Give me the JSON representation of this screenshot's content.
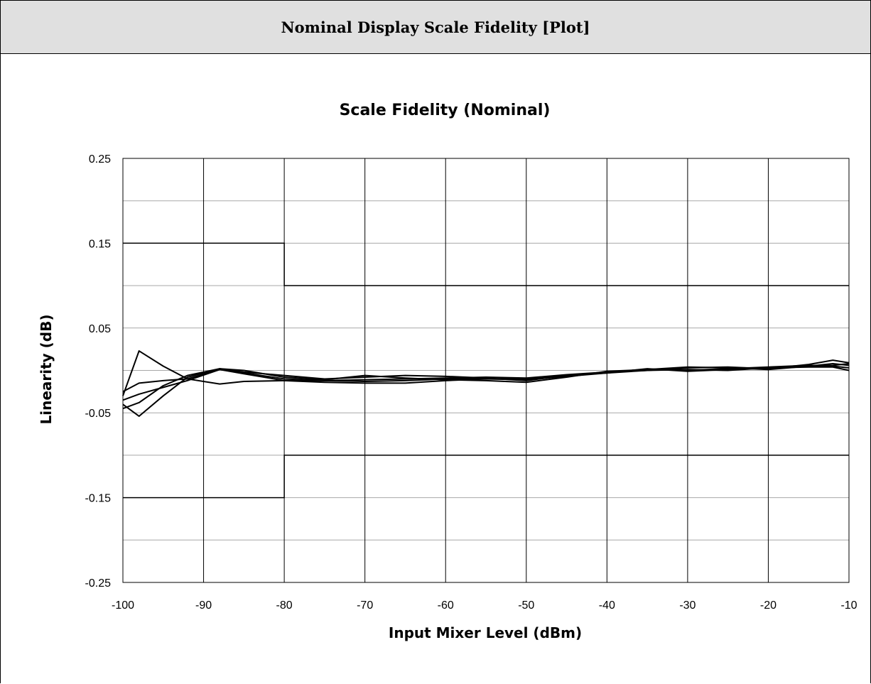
{
  "header": {
    "title": "Nominal Display Scale Fidelity [Plot]"
  },
  "chart_data": {
    "type": "line",
    "title": "Scale Fidelity (Nominal)",
    "xlabel": "Input Mixer Level (dBm)",
    "ylabel": "Linearity (dB)",
    "xlim": [
      -100,
      -10
    ],
    "ylim": [
      -0.25,
      0.25
    ],
    "x_ticks": [
      -100,
      -90,
      -80,
      -70,
      -60,
      -50,
      -40,
      -30,
      -20,
      -10
    ],
    "y_ticks": [
      -0.25,
      -0.15,
      -0.05,
      0.05,
      0.15,
      0.25
    ],
    "x_tick_labels": [
      "-100",
      "-90",
      "-80",
      "-70",
      "-60",
      "-50",
      "-40",
      "-30",
      "-20",
      "-10"
    ],
    "y_tick_labels": [
      "-0.25",
      "-0.15",
      "-0.05",
      "0.05",
      "0.15",
      "0.25"
    ],
    "grid": true,
    "line_color": "#000000",
    "limit_lines": [
      {
        "points": [
          [
            -100,
            0.15
          ],
          [
            -80,
            0.15
          ],
          [
            -80,
            0.1
          ],
          [
            -10,
            0.1
          ]
        ]
      },
      {
        "points": [
          [
            -100,
            -0.15
          ],
          [
            -80,
            -0.15
          ],
          [
            -80,
            -0.1
          ],
          [
            -10,
            -0.1
          ]
        ]
      }
    ],
    "series": [
      {
        "x": [
          -100,
          -98,
          -95,
          -92,
          -88,
          -85,
          -80,
          -75,
          -70,
          -65,
          -60,
          -55,
          -50,
          -45,
          -40,
          -35,
          -30,
          -25,
          -20,
          -15,
          -12,
          -10
        ],
        "y": [
          -0.03,
          0.023,
          0.005,
          -0.01,
          -0.016,
          -0.013,
          -0.012,
          -0.012,
          -0.011,
          -0.01,
          -0.009,
          -0.008,
          -0.009,
          -0.005,
          -0.002,
          0.0,
          0.001,
          0.0,
          0.003,
          0.005,
          0.008,
          0.006
        ]
      },
      {
        "x": [
          -100,
          -98,
          -95,
          -92,
          -88,
          -85,
          -80,
          -75,
          -70,
          -65,
          -60,
          -55,
          -50,
          -45,
          -40,
          -35,
          -30,
          -25,
          -20,
          -15,
          -12,
          -10
        ],
        "y": [
          -0.04,
          -0.054,
          -0.03,
          -0.008,
          0.002,
          -0.002,
          -0.006,
          -0.01,
          -0.008,
          -0.006,
          -0.007,
          -0.009,
          -0.012,
          -0.006,
          -0.003,
          0.0,
          0.003,
          0.004,
          0.002,
          0.007,
          0.012,
          0.009
        ]
      },
      {
        "x": [
          -100,
          -98,
          -95,
          -92,
          -88,
          -85,
          -80,
          -75,
          -70,
          -65,
          -60,
          -55,
          -50,
          -45,
          -40,
          -35,
          -30,
          -25,
          -20,
          -15,
          -12,
          -10
        ],
        "y": [
          -0.025,
          -0.015,
          -0.012,
          -0.01,
          0.001,
          -0.003,
          -0.01,
          -0.012,
          -0.013,
          -0.012,
          -0.01,
          -0.01,
          -0.01,
          -0.006,
          -0.002,
          0.001,
          0.0,
          0.002,
          0.004,
          0.006,
          0.005,
          0.003
        ]
      },
      {
        "x": [
          -100,
          -98,
          -95,
          -92,
          -88,
          -85,
          -80,
          -75,
          -70,
          -65,
          -60,
          -55,
          -50,
          -45,
          -40,
          -35,
          -30,
          -25,
          -20,
          -15,
          -12,
          -10
        ],
        "y": [
          -0.035,
          -0.028,
          -0.02,
          -0.012,
          0.001,
          -0.004,
          -0.012,
          -0.014,
          -0.015,
          -0.015,
          -0.012,
          -0.01,
          -0.011,
          -0.007,
          -0.003,
          0.002,
          -0.001,
          0.001,
          0.003,
          0.004,
          0.004,
          0.0
        ]
      },
      {
        "x": [
          -100,
          -98,
          -95,
          -92,
          -88,
          -85,
          -80,
          -75,
          -70,
          -65,
          -60,
          -55,
          -50,
          -45,
          -40,
          -35,
          -30,
          -25,
          -20,
          -15,
          -12,
          -10
        ],
        "y": [
          -0.045,
          -0.038,
          -0.018,
          -0.006,
          0.002,
          0.0,
          -0.008,
          -0.011,
          -0.006,
          -0.009,
          -0.011,
          -0.012,
          -0.014,
          -0.008,
          -0.001,
          0.001,
          0.004,
          0.003,
          0.001,
          0.005,
          0.006,
          0.008
        ]
      }
    ]
  }
}
